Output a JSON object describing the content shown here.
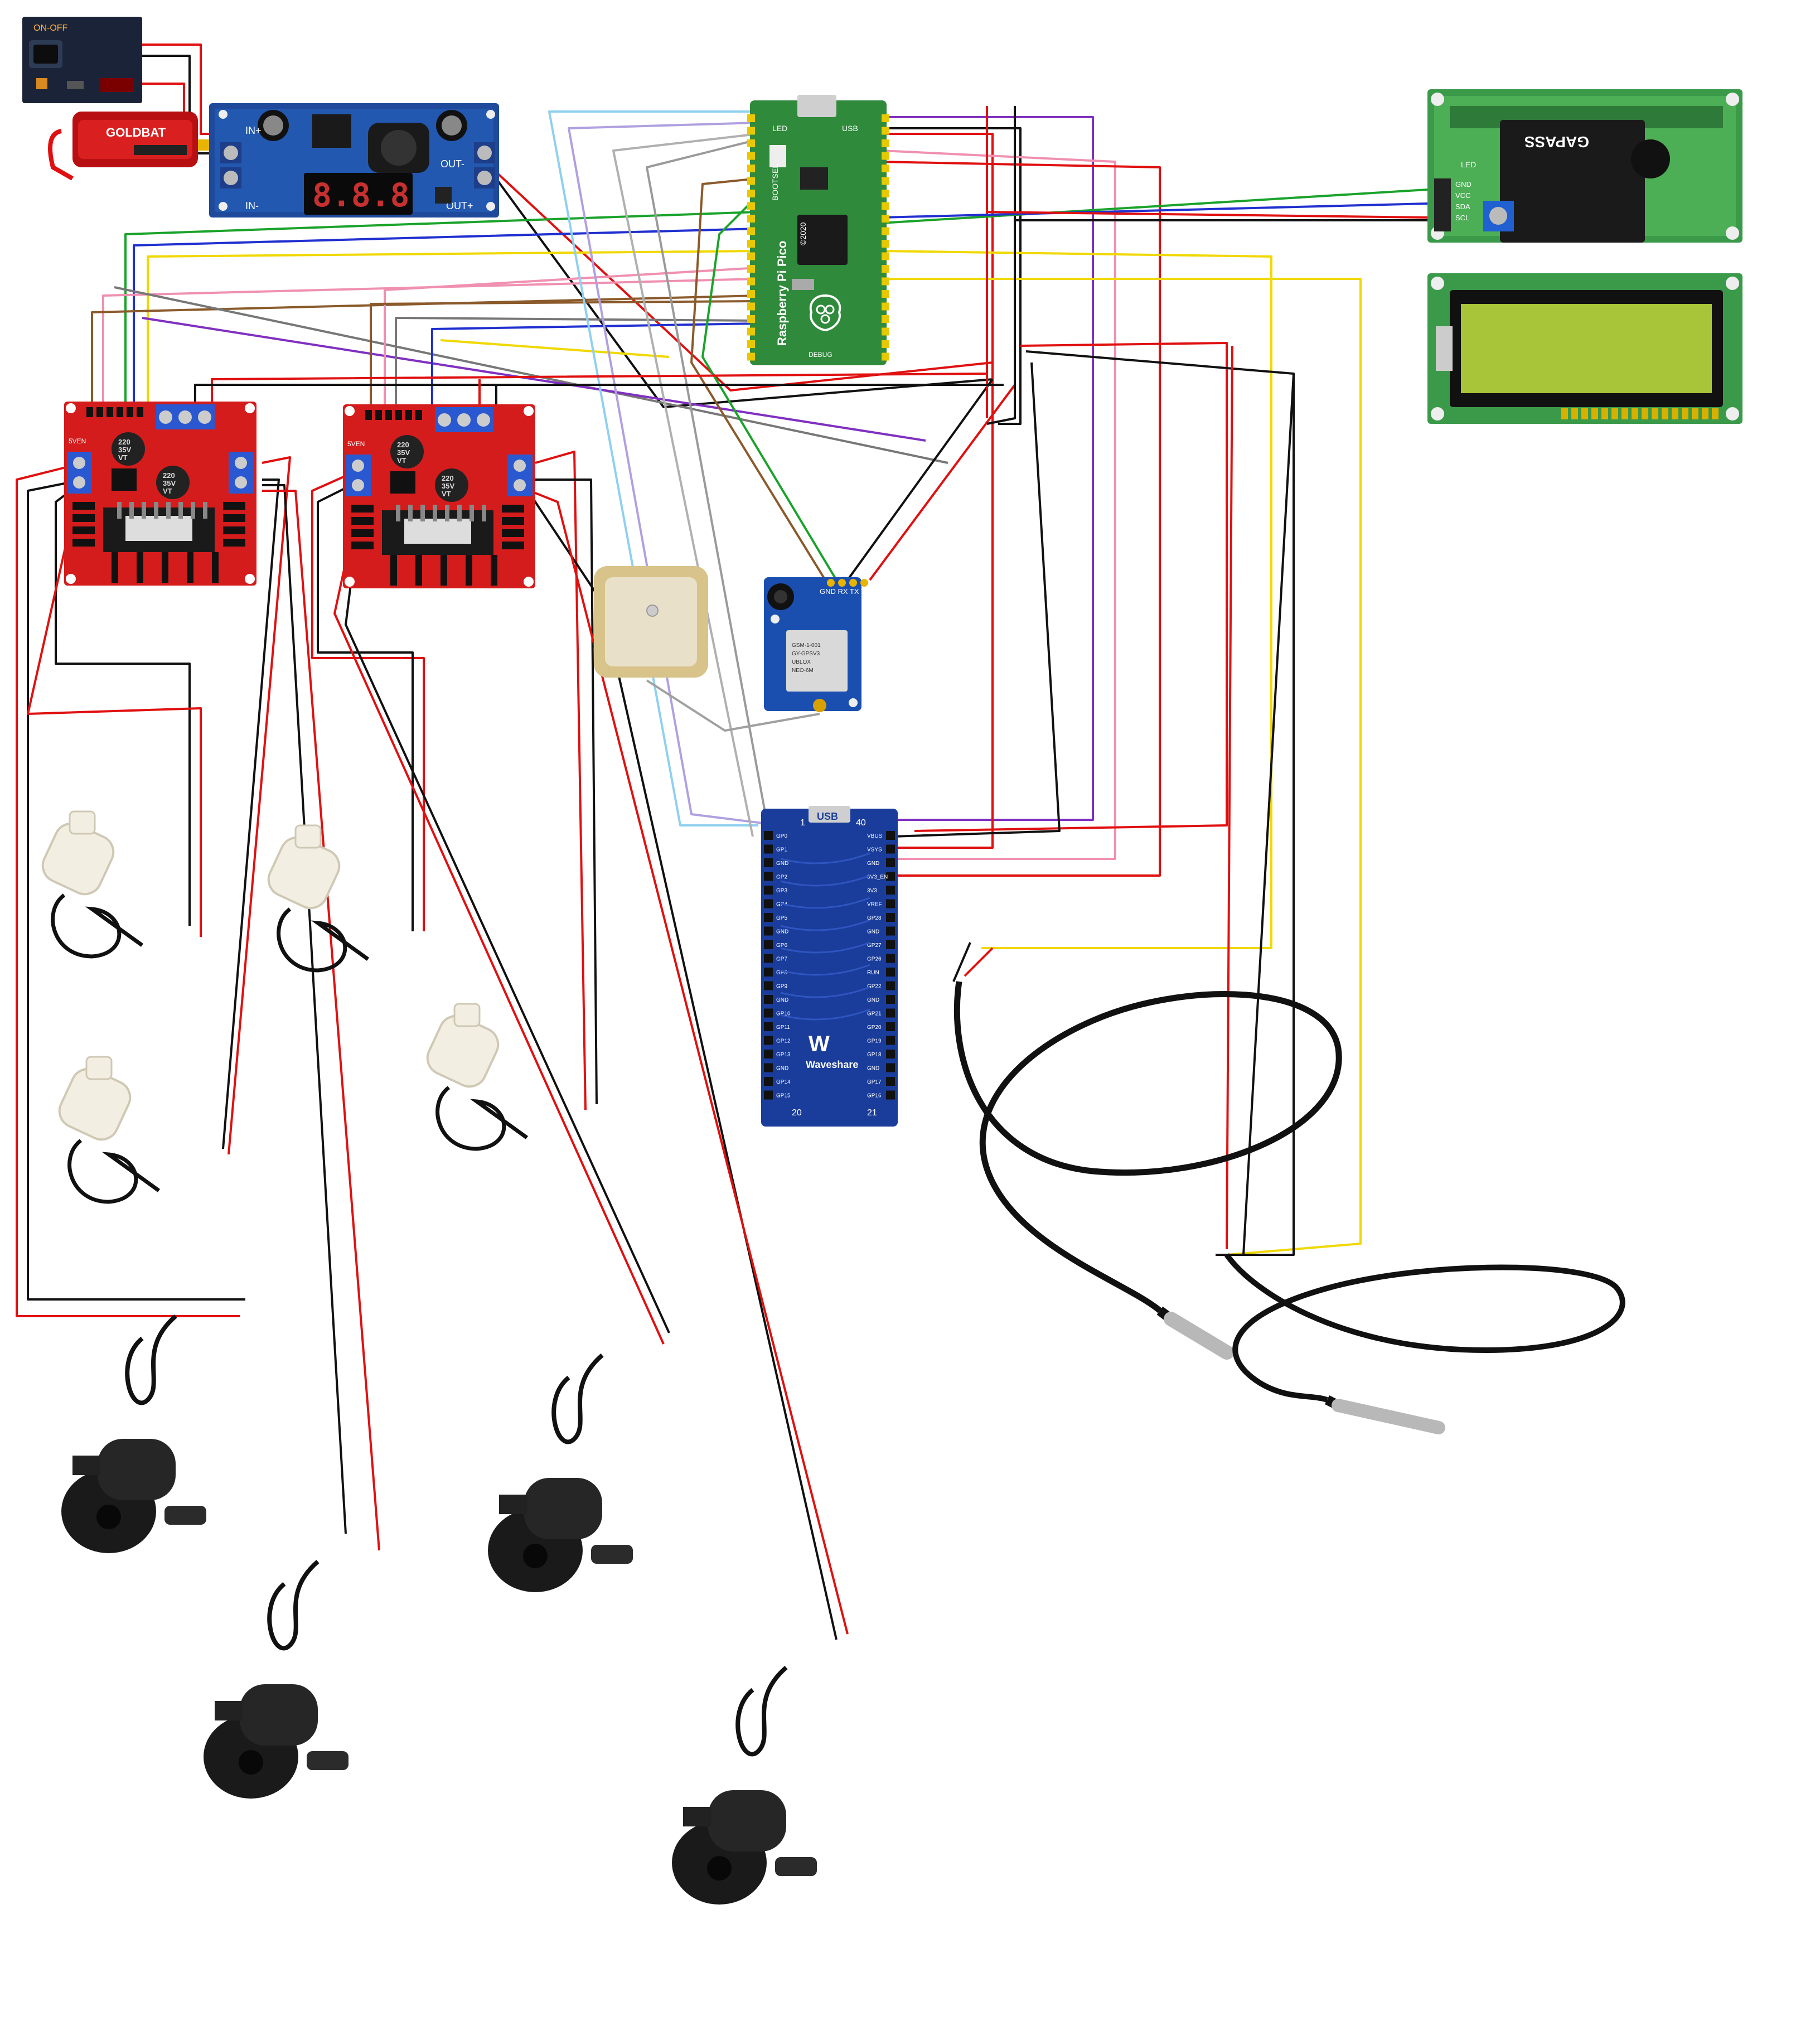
{
  "diagram": {
    "pico": {
      "brand": "Raspberry Pi Pico",
      "year": "©2020",
      "top_left": "LED",
      "top_right": "USB",
      "reset": "BOOTSEL",
      "bottom": "DEBUG"
    },
    "buck": {
      "display": "8.8.8",
      "in_plus": "IN+",
      "in_minus": "IN-",
      "out_plus": "OUT+",
      "out_minus": "OUT-"
    },
    "motor_driver": {
      "cap_text": [
        "220",
        "35V",
        "VT"
      ],
      "label": "5VEN"
    },
    "gps": {
      "lines": [
        "GSM-1-001",
        "GY-GPSV3",
        "UBLOX",
        "NEO-6M"
      ],
      "pins": "GND RX TX VCC"
    },
    "lcd_i2c": {
      "backpack_label": "GAPASS",
      "pins": [
        "GND",
        "VCC",
        "SDA",
        "SCL"
      ],
      "led": "LED"
    },
    "breakout": {
      "usb": "USB",
      "top_num": "1",
      "top_num_right": "40",
      "bottom_num": "20",
      "bottom_num_right": "21",
      "brand": "Waveshare",
      "left_pins": [
        "GP0",
        "GP1",
        "GND",
        "GP2",
        "GP3",
        "GP4",
        "GP5",
        "GND",
        "GP6",
        "GP7",
        "GP8",
        "GP9",
        "GND",
        "GP10",
        "GP11",
        "GP12",
        "GP13",
        "GND",
        "GP14",
        "GP15"
      ],
      "right_pins": [
        "VBUS",
        "VSYS",
        "GND",
        "3V3_EN",
        "3V3",
        "VREF",
        "GP28",
        "GND",
        "GP27",
        "GP26",
        "RUN",
        "GP22",
        "GND",
        "GP21",
        "GP20",
        "GP19",
        "GP18",
        "GND",
        "GP17",
        "GP16"
      ]
    },
    "battery": {
      "brand": "GOLDBAT",
      "switch_label": "ON-OFF"
    }
  }
}
